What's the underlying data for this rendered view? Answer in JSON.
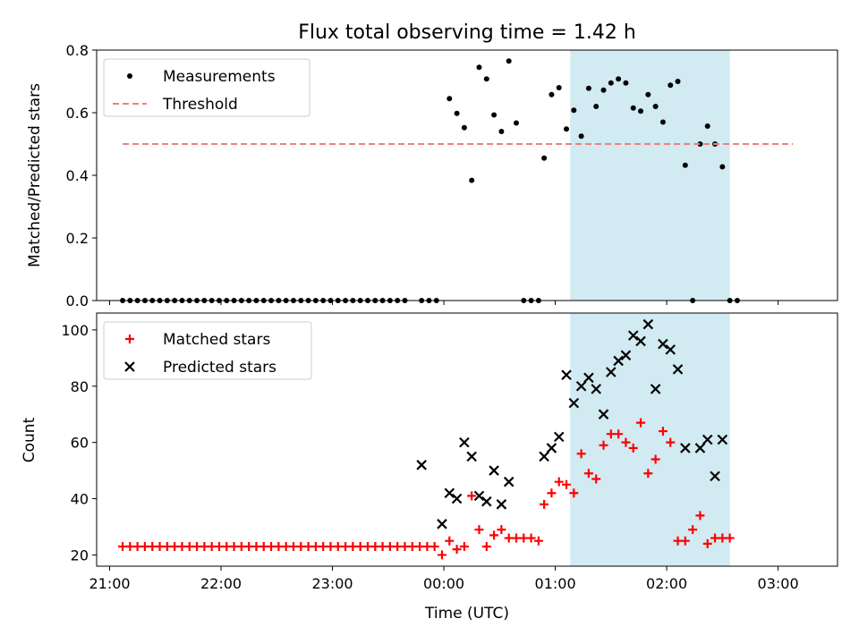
{
  "chart_data": {
    "title": "Flux total observing time = 1.42 h",
    "xlabel": "Time (UTC)",
    "x_ticks": [
      "21:00",
      "22:00",
      "23:00",
      "00:00",
      "01:00",
      "02:00",
      "03:00"
    ],
    "xlim": [
      "20:53",
      "03:32"
    ],
    "shaded_interval": [
      "01:08",
      "02:34"
    ],
    "panels": [
      {
        "id": "ratio",
        "type": "scatter",
        "ylabel": "Matched/Predicted stars",
        "ylim": [
          0,
          0.8
        ],
        "y_ticks": [
          "0.0",
          "0.2",
          "0.4",
          "0.6",
          "0.8"
        ],
        "legend_position": "top-left",
        "series": [
          {
            "name": "Measurements",
            "marker": "dot",
            "color": "#000000",
            "points": [
              [
                "21:07",
                0
              ],
              [
                "21:11",
                0
              ],
              [
                "21:15",
                0
              ],
              [
                "21:19",
                0
              ],
              [
                "21:23",
                0
              ],
              [
                "21:27",
                0
              ],
              [
                "21:31",
                0
              ],
              [
                "21:35",
                0
              ],
              [
                "21:39",
                0
              ],
              [
                "21:43",
                0
              ],
              [
                "21:47",
                0
              ],
              [
                "21:51",
                0
              ],
              [
                "21:55",
                0
              ],
              [
                "21:59",
                0
              ],
              [
                "22:03",
                0
              ],
              [
                "22:07",
                0
              ],
              [
                "22:11",
                0
              ],
              [
                "22:15",
                0
              ],
              [
                "22:19",
                0
              ],
              [
                "22:23",
                0
              ],
              [
                "22:27",
                0
              ],
              [
                "22:31",
                0
              ],
              [
                "22:35",
                0
              ],
              [
                "22:39",
                0
              ],
              [
                "22:43",
                0
              ],
              [
                "22:47",
                0
              ],
              [
                "22:51",
                0
              ],
              [
                "22:55",
                0
              ],
              [
                "22:59",
                0
              ],
              [
                "23:03",
                0
              ],
              [
                "23:07",
                0
              ],
              [
                "23:11",
                0
              ],
              [
                "23:15",
                0
              ],
              [
                "23:19",
                0
              ],
              [
                "23:23",
                0
              ],
              [
                "23:27",
                0
              ],
              [
                "23:31",
                0
              ],
              [
                "23:35",
                0
              ],
              [
                "23:39",
                0
              ],
              [
                "23:48",
                0
              ],
              [
                "23:52",
                0
              ],
              [
                "23:56",
                0
              ],
              [
                "00:03",
                0.645
              ],
              [
                "00:07",
                0.598
              ],
              [
                "00:11",
                0.552
              ],
              [
                "00:15",
                0.384
              ],
              [
                "00:19",
                0.745
              ],
              [
                "00:23",
                0.708
              ],
              [
                "00:27",
                0.593
              ],
              [
                "00:31",
                0.54
              ],
              [
                "00:35",
                0.765
              ],
              [
                "00:39",
                0.567
              ],
              [
                "00:43",
                0
              ],
              [
                "00:47",
                0
              ],
              [
                "00:51",
                0
              ],
              [
                "00:54",
                0.455
              ],
              [
                "00:58",
                0.658
              ],
              [
                "01:02",
                0.68
              ],
              [
                "01:06",
                0.548
              ],
              [
                "01:10",
                0.608
              ],
              [
                "01:14",
                0.525
              ],
              [
                "01:18",
                0.678
              ],
              [
                "01:22",
                0.62
              ],
              [
                "01:26",
                0.672
              ],
              [
                "01:30",
                0.695
              ],
              [
                "01:34",
                0.708
              ],
              [
                "01:38",
                0.695
              ],
              [
                "01:42",
                0.615
              ],
              [
                "01:46",
                0.605
              ],
              [
                "01:50",
                0.658
              ],
              [
                "01:54",
                0.62
              ],
              [
                "01:58",
                0.57
              ],
              [
                "02:02",
                0.688
              ],
              [
                "02:06",
                0.7
              ],
              [
                "02:10",
                0.432
              ],
              [
                "02:14",
                0
              ],
              [
                "02:18",
                0.5
              ],
              [
                "02:22",
                0.557
              ],
              [
                "02:26",
                0.5
              ],
              [
                "02:30",
                0.427
              ],
              [
                "02:34",
                0
              ],
              [
                "02:38",
                0
              ]
            ]
          },
          {
            "name": "Threshold",
            "marker": "dashed-line",
            "color": "#f08080",
            "points": [
              [
                "21:07",
                0.5
              ],
              [
                "03:08",
                0.5
              ]
            ]
          }
        ]
      },
      {
        "id": "counts",
        "type": "scatter",
        "ylabel": "Count",
        "ylim": [
          16,
          106
        ],
        "y_ticks": [
          "20",
          "40",
          "60",
          "80",
          "100"
        ],
        "legend_position": "top-left",
        "series": [
          {
            "name": "Matched stars",
            "marker": "plus",
            "color": "#ff0000",
            "points": [
              [
                "21:07",
                23
              ],
              [
                "21:11",
                23
              ],
              [
                "21:15",
                23
              ],
              [
                "21:19",
                23
              ],
              [
                "21:23",
                23
              ],
              [
                "21:27",
                23
              ],
              [
                "21:31",
                23
              ],
              [
                "21:35",
                23
              ],
              [
                "21:39",
                23
              ],
              [
                "21:43",
                23
              ],
              [
                "21:47",
                23
              ],
              [
                "21:51",
                23
              ],
              [
                "21:55",
                23
              ],
              [
                "21:59",
                23
              ],
              [
                "22:03",
                23
              ],
              [
                "22:07",
                23
              ],
              [
                "22:11",
                23
              ],
              [
                "22:15",
                23
              ],
              [
                "22:19",
                23
              ],
              [
                "22:23",
                23
              ],
              [
                "22:27",
                23
              ],
              [
                "22:31",
                23
              ],
              [
                "22:35",
                23
              ],
              [
                "22:39",
                23
              ],
              [
                "22:43",
                23
              ],
              [
                "22:47",
                23
              ],
              [
                "22:51",
                23
              ],
              [
                "22:55",
                23
              ],
              [
                "22:59",
                23
              ],
              [
                "23:03",
                23
              ],
              [
                "23:07",
                23
              ],
              [
                "23:11",
                23
              ],
              [
                "23:15",
                23
              ],
              [
                "23:19",
                23
              ],
              [
                "23:23",
                23
              ],
              [
                "23:27",
                23
              ],
              [
                "23:31",
                23
              ],
              [
                "23:35",
                23
              ],
              [
                "23:39",
                23
              ],
              [
                "23:43",
                23
              ],
              [
                "23:47",
                23
              ],
              [
                "23:51",
                23
              ],
              [
                "23:55",
                23
              ],
              [
                "23:59",
                20
              ],
              [
                "00:03",
                25
              ],
              [
                "00:07",
                22
              ],
              [
                "00:11",
                23
              ],
              [
                "00:15",
                41
              ],
              [
                "00:19",
                29
              ],
              [
                "00:23",
                23
              ],
              [
                "00:27",
                27
              ],
              [
                "00:31",
                29
              ],
              [
                "00:35",
                26
              ],
              [
                "00:39",
                26
              ],
              [
                "00:43",
                26
              ],
              [
                "00:47",
                26
              ],
              [
                "00:51",
                25
              ],
              [
                "00:54",
                38
              ],
              [
                "00:58",
                42
              ],
              [
                "01:02",
                46
              ],
              [
                "01:06",
                45
              ],
              [
                "01:10",
                42
              ],
              [
                "01:14",
                56
              ],
              [
                "01:18",
                49
              ],
              [
                "01:22",
                47
              ],
              [
                "01:26",
                59
              ],
              [
                "01:30",
                63
              ],
              [
                "01:34",
                63
              ],
              [
                "01:38",
                60
              ],
              [
                "01:42",
                58
              ],
              [
                "01:46",
                67
              ],
              [
                "01:50",
                49
              ],
              [
                "01:54",
                54
              ],
              [
                "01:58",
                64
              ],
              [
                "02:02",
                60
              ],
              [
                "02:06",
                25
              ],
              [
                "02:10",
                25
              ],
              [
                "02:14",
                29
              ],
              [
                "02:18",
                34
              ],
              [
                "02:22",
                24
              ],
              [
                "02:26",
                26
              ],
              [
                "02:30",
                26
              ],
              [
                "02:34",
                26
              ]
            ]
          },
          {
            "name": "Predicted stars",
            "marker": "x",
            "color": "#000000",
            "points": [
              [
                "23:48",
                52
              ],
              [
                "23:59",
                31
              ],
              [
                "00:03",
                42
              ],
              [
                "00:07",
                40
              ],
              [
                "00:11",
                60
              ],
              [
                "00:15",
                55
              ],
              [
                "00:19",
                41
              ],
              [
                "00:23",
                39
              ],
              [
                "00:27",
                50
              ],
              [
                "00:31",
                38
              ],
              [
                "00:35",
                46
              ],
              [
                "00:54",
                55
              ],
              [
                "00:58",
                58
              ],
              [
                "01:02",
                62
              ],
              [
                "01:06",
                84
              ],
              [
                "01:10",
                74
              ],
              [
                "01:14",
                80
              ],
              [
                "01:18",
                83
              ],
              [
                "01:22",
                79
              ],
              [
                "01:26",
                70
              ],
              [
                "01:30",
                85
              ],
              [
                "01:34",
                89
              ],
              [
                "01:38",
                91
              ],
              [
                "01:42",
                98
              ],
              [
                "01:46",
                96
              ],
              [
                "01:50",
                102
              ],
              [
                "01:54",
                79
              ],
              [
                "01:58",
                95
              ],
              [
                "02:02",
                93
              ],
              [
                "02:06",
                86
              ],
              [
                "02:10",
                58
              ],
              [
                "02:18",
                58
              ],
              [
                "02:22",
                61
              ],
              [
                "02:26",
                48
              ],
              [
                "02:30",
                61
              ]
            ]
          }
        ]
      }
    ]
  }
}
